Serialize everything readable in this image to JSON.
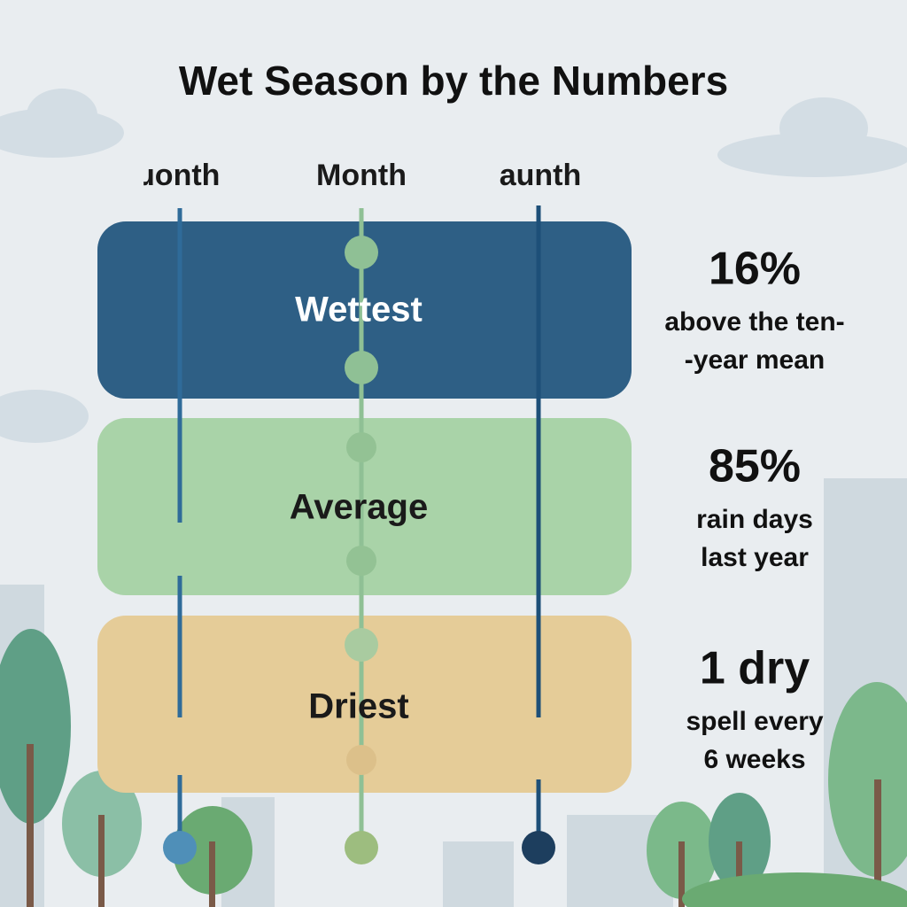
{
  "title": "Wet Season by the Numbers",
  "columns": [
    "ɹonth",
    "Month",
    "aunth"
  ],
  "rows": [
    {
      "label": "Wettest",
      "stat": "16%",
      "lines": [
        "above the ten-",
        "-year mean"
      ]
    },
    {
      "label": "Average",
      "stat": "85%",
      "lines": [
        "rain days",
        "last year"
      ]
    },
    {
      "label": "Driest",
      "stat": "1 dry",
      "lines": [
        "spell every",
        "6 weeks"
      ]
    }
  ]
}
